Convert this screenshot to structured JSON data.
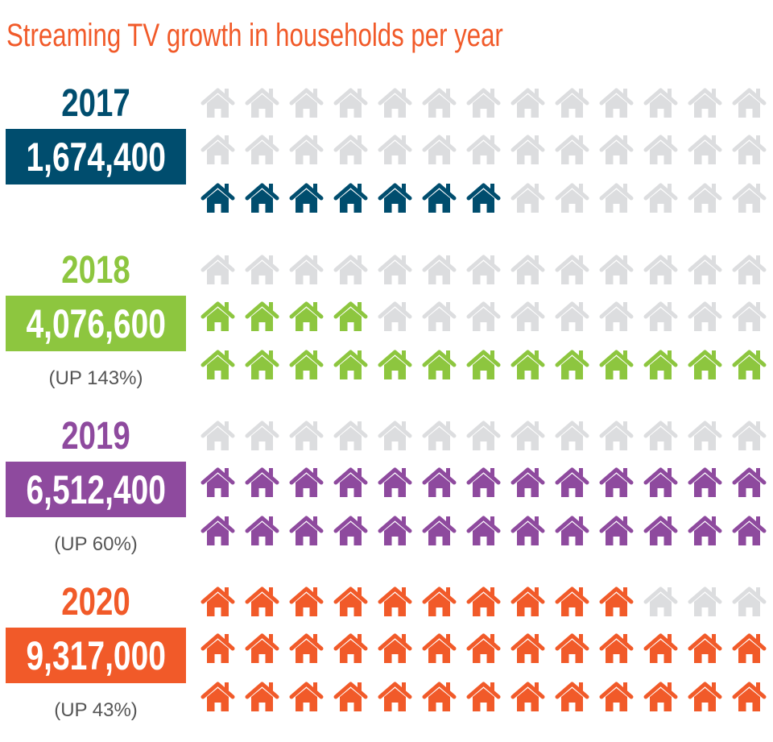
{
  "chart_data": {
    "type": "pictogram",
    "title": "Streaming TV growth in households per year",
    "icon": "house-icon",
    "empty_color": "#DCDDDF",
    "grid": {
      "rows": 3,
      "columns": 13
    },
    "series": [
      {
        "year": "2017",
        "value": "1,674,400",
        "change": "",
        "filled_icons": 7,
        "color": "#004D6E"
      },
      {
        "year": "2018",
        "value": "4,076,600",
        "change": "(UP 143%)",
        "filled_icons": 17,
        "color": "#8DC63F"
      },
      {
        "year": "2019",
        "value": "6,512,400",
        "change": "(UP 60%)",
        "filled_icons": 26,
        "color": "#8E4A9E"
      },
      {
        "year": "2020",
        "value": "9,317,000",
        "change": "(UP 43%)",
        "filled_icons": 36,
        "color": "#F15A29"
      }
    ]
  }
}
